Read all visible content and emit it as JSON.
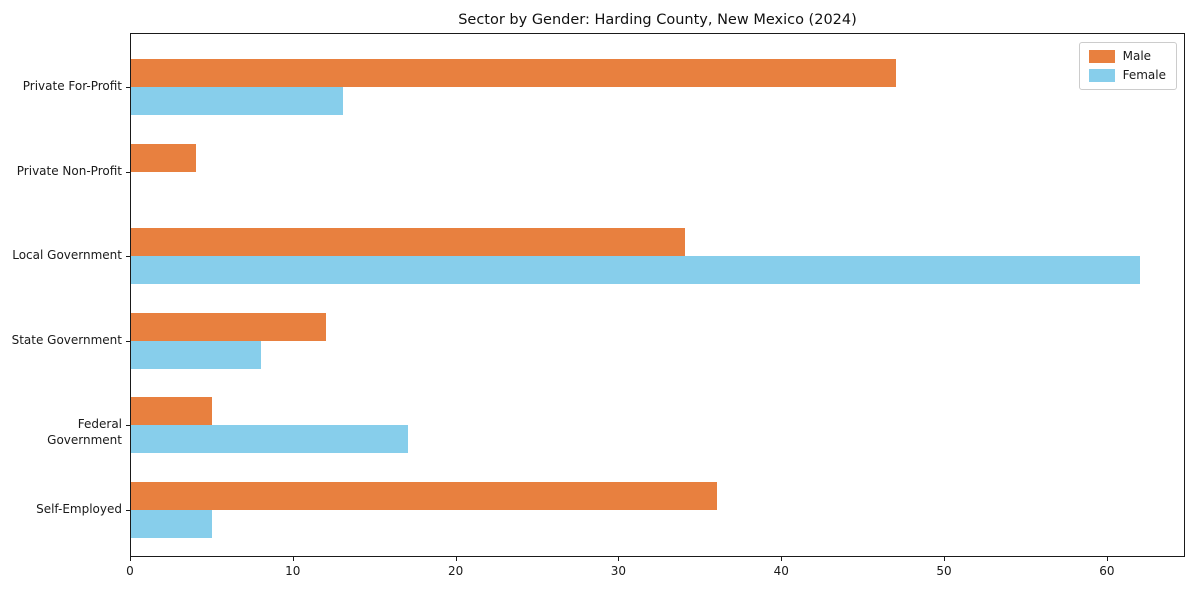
{
  "chart_data": {
    "type": "bar",
    "orientation": "horizontal",
    "title": "Sector by Gender: Harding County, New Mexico (2024)",
    "categories": [
      "Private For-Profit",
      "Private Non-Profit",
      "Local Government",
      "State Government",
      "Federal Government",
      "Self-Employed"
    ],
    "series": [
      {
        "name": "Male",
        "color": "#e8803f",
        "values": [
          47,
          4,
          34,
          12,
          5,
          36
        ]
      },
      {
        "name": "Female",
        "color": "#87ceeb",
        "values": [
          13,
          0,
          62,
          8,
          17,
          5
        ]
      }
    ],
    "xlabel": "",
    "ylabel": "",
    "xlim": [
      0,
      64.8
    ],
    "xticks": [
      0,
      10,
      20,
      30,
      40,
      50,
      60
    ],
    "legend_position": "upper right",
    "grid": false,
    "colors": {
      "axis": "#1a1a1a",
      "legend_border": "#cccccc",
      "background": "#ffffff"
    }
  }
}
